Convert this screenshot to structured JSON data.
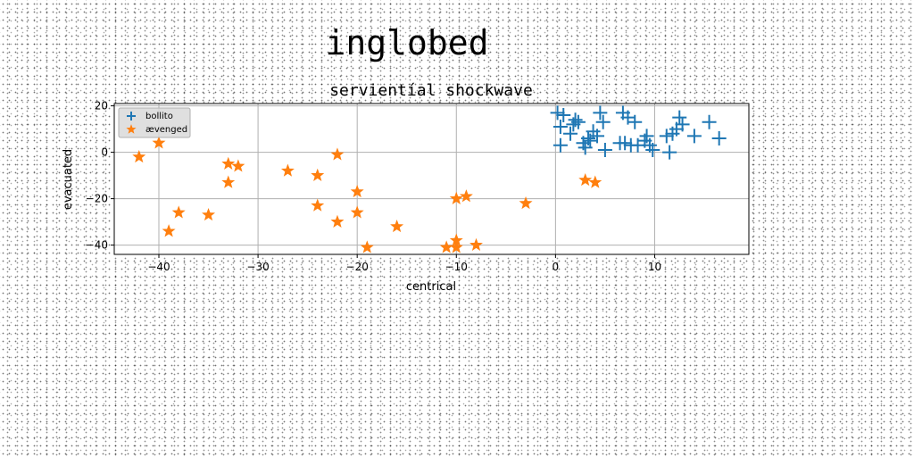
{
  "chart_data": {
    "type": "scatter",
    "suptitle": "inglobed",
    "title": "servientíal shockwave",
    "xlabel": "centrical",
    "ylabel": "evacuated",
    "xlim": [
      -44.5,
      19.5
    ],
    "ylim": [
      -44,
      21
    ],
    "x_ticks": [
      -40,
      -30,
      -20,
      -10,
      0,
      10
    ],
    "y_ticks": [
      20,
      0,
      -20,
      -40
    ],
    "x_tick_labels": [
      "−40",
      "−30",
      "−20",
      "−10",
      "0",
      "10"
    ],
    "y_tick_labels": [
      "20",
      "0",
      "−20",
      "−40"
    ],
    "grid": true,
    "legend_position": "upper-left",
    "series": [
      {
        "name": "bollito",
        "marker": "plus",
        "color": "#1f77b4",
        "points": [
          [
            0.2,
            17
          ],
          [
            0.5,
            11
          ],
          [
            0.5,
            3
          ],
          [
            0.8,
            16
          ],
          [
            1.5,
            8
          ],
          [
            1.8,
            12
          ],
          [
            2,
            14
          ],
          [
            2.3,
            13
          ],
          [
            2.8,
            4
          ],
          [
            3,
            2
          ],
          [
            3.3,
            6
          ],
          [
            3.5,
            5
          ],
          [
            3.8,
            9
          ],
          [
            4.2,
            7
          ],
          [
            4.5,
            17
          ],
          [
            4.8,
            13
          ],
          [
            5,
            1
          ],
          [
            6.5,
            4
          ],
          [
            6.8,
            17
          ],
          [
            7,
            4
          ],
          [
            7.3,
            15
          ],
          [
            7.6,
            3
          ],
          [
            8,
            13
          ],
          [
            8.3,
            3
          ],
          [
            9,
            5
          ],
          [
            9.2,
            7
          ],
          [
            9.5,
            3
          ],
          [
            9.8,
            1
          ],
          [
            11.2,
            7
          ],
          [
            11.5,
            0
          ],
          [
            11.8,
            8
          ],
          [
            12.2,
            10
          ],
          [
            12.5,
            15
          ],
          [
            12.8,
            12
          ],
          [
            14,
            7
          ],
          [
            15.5,
            13
          ],
          [
            16.5,
            6
          ]
        ]
      },
      {
        "name": "ævenged",
        "marker": "star",
        "color": "#ff7f0e",
        "points": [
          [
            -42,
            -2
          ],
          [
            -40,
            4
          ],
          [
            -39,
            -34
          ],
          [
            -38,
            -26
          ],
          [
            -35,
            -27
          ],
          [
            -33,
            -5
          ],
          [
            -33,
            -13
          ],
          [
            -32,
            -6
          ],
          [
            -27,
            -8
          ],
          [
            -24,
            -10
          ],
          [
            -24,
            -23
          ],
          [
            -22,
            -1
          ],
          [
            -22,
            -30
          ],
          [
            -20,
            -17
          ],
          [
            -20,
            -26
          ],
          [
            -19,
            -41
          ],
          [
            -16,
            -32
          ],
          [
            -11,
            -41
          ],
          [
            -10,
            -38
          ],
          [
            -10,
            -41
          ],
          [
            -10,
            -20
          ],
          [
            -9,
            -19
          ],
          [
            -8,
            -40
          ],
          [
            -3,
            -22
          ],
          [
            3,
            -12
          ],
          [
            4,
            -13
          ]
        ]
      }
    ]
  }
}
